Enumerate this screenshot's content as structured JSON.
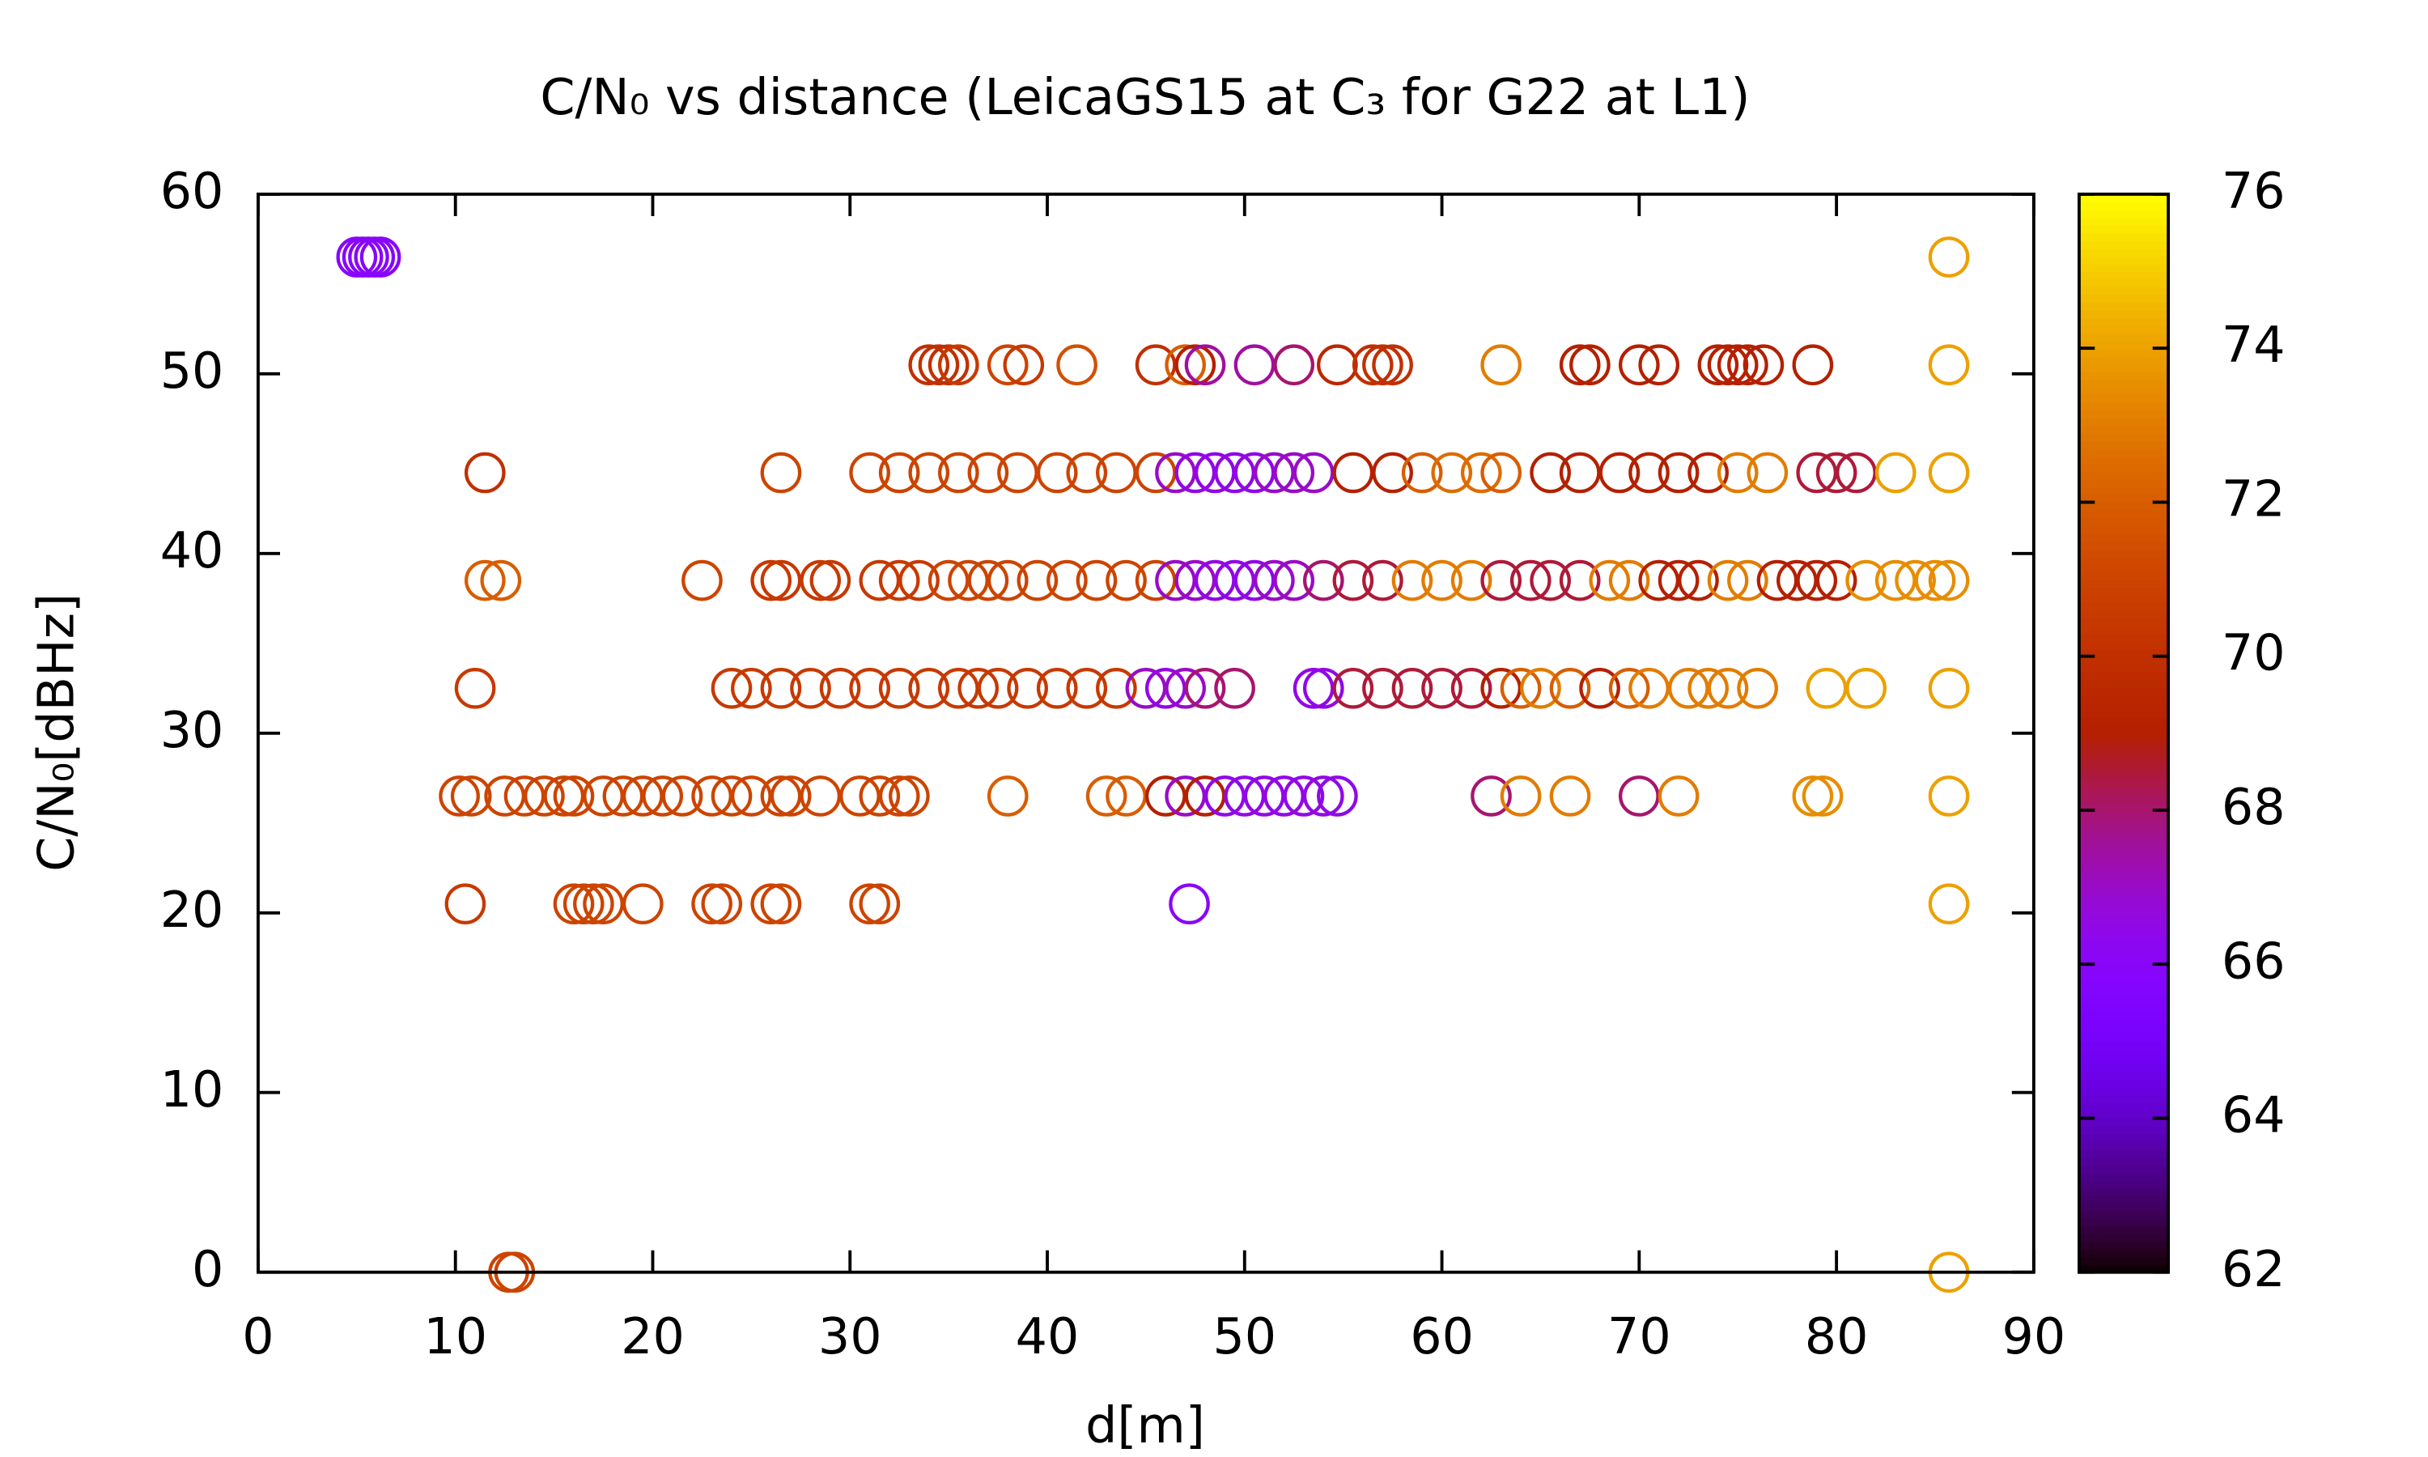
{
  "chart_data": {
    "type": "scatter",
    "title": "C/N₀ vs distance (LeicaGS15 at C₃ for G22 at L1)",
    "x_label": "d[m]",
    "y_label": "C/N₀[dBHz]",
    "xlim": [
      0,
      90
    ],
    "xticks": [
      0,
      10,
      20,
      30,
      40,
      50,
      60,
      70,
      80,
      90
    ],
    "ylim": [
      0,
      60
    ],
    "yticks": [
      0,
      10,
      20,
      30,
      40,
      50,
      60
    ],
    "cblim": [
      62,
      76
    ],
    "cbticks": [
      62,
      64,
      66,
      68,
      70,
      72,
      74,
      76
    ],
    "colormap": "gnuplot",
    "marker": "open-circle",
    "x": [
      5,
      5.3,
      5.6,
      5.9,
      6.2,
      85.7,
      34,
      34.5,
      35,
      35.5,
      38,
      38.8,
      41.5,
      45.5,
      47,
      47.5,
      48,
      50.5,
      52.5,
      54.7,
      56.5,
      57,
      57.5,
      63,
      67,
      67.5,
      70,
      71,
      74,
      74.5,
      75,
      75.5,
      76.3,
      78.8,
      85.7,
      11.5,
      26.5,
      31,
      32.5,
      34,
      35.5,
      37,
      38.5,
      40.5,
      42,
      43.5,
      45.5,
      46.5,
      47.5,
      48.5,
      49.5,
      50.5,
      51.5,
      52.5,
      53.5,
      55.5,
      57.5,
      59,
      60.5,
      62,
      63,
      65.5,
      67,
      69,
      70.5,
      72,
      73.5,
      75,
      76.5,
      79,
      80,
      81,
      83,
      85.7,
      11.5,
      12.3,
      22.5,
      26,
      26.5,
      28.5,
      29,
      31.5,
      32.5,
      33.5,
      35,
      36,
      37,
      38,
      39.5,
      41,
      42.5,
      44,
      45.5,
      46.5,
      47.5,
      48.5,
      49.5,
      50.5,
      51.5,
      52.5,
      54,
      55.5,
      57,
      58.5,
      60,
      61.5,
      63,
      64.5,
      65.5,
      67,
      68.5,
      69.5,
      71,
      72,
      73,
      74.5,
      75.5,
      77,
      78,
      79,
      80,
      81.5,
      83,
      84,
      85,
      85.7,
      11,
      24,
      25,
      26.5,
      28,
      29.5,
      31,
      32.5,
      34,
      35.5,
      36.5,
      37.5,
      39,
      40.5,
      42,
      43.5,
      45,
      46,
      47,
      48,
      49.5,
      53.5,
      54,
      55.5,
      57,
      58.5,
      60,
      61.5,
      63,
      64,
      65,
      66.5,
      68,
      69.5,
      70.5,
      72.5,
      73.5,
      74.5,
      76,
      79.5,
      81.5,
      85.7,
      10.2,
      10.8,
      12.5,
      13.5,
      14.5,
      15.5,
      16,
      17.5,
      18.5,
      19.5,
      20.5,
      21.5,
      23,
      24,
      25,
      26.5,
      27,
      28.5,
      30.5,
      31.5,
      32.5,
      33,
      38,
      43,
      44,
      46,
      47,
      48,
      49,
      50,
      51,
      52,
      53,
      54,
      54.7,
      62.5,
      64,
      66.5,
      70,
      72,
      78.8,
      79.3,
      85.7,
      10.5,
      16,
      16.5,
      17,
      17.5,
      19.5,
      23,
      23.5,
      26,
      26.5,
      31,
      31.5,
      47.2,
      85.7,
      12.7,
      13,
      85.7
    ],
    "values": [
      56.5,
      56.5,
      56.5,
      56.5,
      56.5,
      56.5,
      50.5,
      50.5,
      50.5,
      50.5,
      50.5,
      50.5,
      50.5,
      50.5,
      50.5,
      50.5,
      50.5,
      50.5,
      50.5,
      50.5,
      50.5,
      50.5,
      50.5,
      50.5,
      50.5,
      50.5,
      50.5,
      50.5,
      50.5,
      50.5,
      50.5,
      50.5,
      50.5,
      50.5,
      50.5,
      44.5,
      44.5,
      44.5,
      44.5,
      44.5,
      44.5,
      44.5,
      44.5,
      44.5,
      44.5,
      44.5,
      44.5,
      44.5,
      44.5,
      44.5,
      44.5,
      44.5,
      44.5,
      44.5,
      44.5,
      44.5,
      44.5,
      44.5,
      44.5,
      44.5,
      44.5,
      44.5,
      44.5,
      44.5,
      44.5,
      44.5,
      44.5,
      44.5,
      44.5,
      44.5,
      44.5,
      44.5,
      44.5,
      44.5,
      38.5,
      38.5,
      38.5,
      38.5,
      38.5,
      38.5,
      38.5,
      38.5,
      38.5,
      38.5,
      38.5,
      38.5,
      38.5,
      38.5,
      38.5,
      38.5,
      38.5,
      38.5,
      38.5,
      38.5,
      38.5,
      38.5,
      38.5,
      38.5,
      38.5,
      38.5,
      38.5,
      38.5,
      38.5,
      38.5,
      38.5,
      38.5,
      38.5,
      38.5,
      38.5,
      38.5,
      38.5,
      38.5,
      38.5,
      38.5,
      38.5,
      38.5,
      38.5,
      38.5,
      38.5,
      38.5,
      38.5,
      38.5,
      38.5,
      38.5,
      38.5,
      38.5,
      32.5,
      32.5,
      32.5,
      32.5,
      32.5,
      32.5,
      32.5,
      32.5,
      32.5,
      32.5,
      32.5,
      32.5,
      32.5,
      32.5,
      32.5,
      32.5,
      32.5,
      32.5,
      32.5,
      32.5,
      32.5,
      32.5,
      32.5,
      32.5,
      32.5,
      32.5,
      32.5,
      32.5,
      32.5,
      32.5,
      32.5,
      32.5,
      32.5,
      32.5,
      32.5,
      32.5,
      32.5,
      32.5,
      32.5,
      32.5,
      32.5,
      32.5,
      26.5,
      26.5,
      26.5,
      26.5,
      26.5,
      26.5,
      26.5,
      26.5,
      26.5,
      26.5,
      26.5,
      26.5,
      26.5,
      26.5,
      26.5,
      26.5,
      26.5,
      26.5,
      26.5,
      26.5,
      26.5,
      26.5,
      26.5,
      26.5,
      26.5,
      26.5,
      26.5,
      26.5,
      26.5,
      26.5,
      26.5,
      26.5,
      26.5,
      26.5,
      26.5,
      26.5,
      26.5,
      26.5,
      26.5,
      26.5,
      26.5,
      26.5,
      26.5,
      20.5,
      20.5,
      20.5,
      20.5,
      20.5,
      20.5,
      20.5,
      20.5,
      20.5,
      20.5,
      20.5,
      20.5,
      20.5,
      20.5,
      0,
      0,
      0
    ],
    "color_values": [
      66,
      66,
      66,
      66,
      66,
      74,
      70,
      70,
      70,
      70.5,
      71,
      70.5,
      71.5,
      70,
      72,
      69,
      67.5,
      67.5,
      68,
      69.5,
      70,
      70,
      70,
      73,
      69,
      69,
      69,
      69,
      69,
      69,
      69,
      69,
      69,
      69,
      74,
      70,
      71,
      71,
      71,
      71,
      71,
      71,
      71,
      71,
      71,
      71,
      71,
      67,
      66.5,
      66.5,
      66.5,
      66.5,
      67,
      67,
      67,
      69,
      69,
      72,
      72.5,
      72.5,
      72,
      69,
      69,
      69,
      69,
      69,
      69,
      73,
      73,
      68.5,
      68.5,
      68.5,
      74,
      74,
      72,
      72,
      71,
      70.5,
      70.5,
      70.5,
      70.5,
      70.5,
      70.5,
      70.5,
      71,
      71,
      71,
      71,
      71,
      71,
      71,
      71,
      71,
      67,
      67,
      66.5,
      66.5,
      66.5,
      67,
      67,
      68,
      68.5,
      68.5,
      73,
      73,
      73,
      68.5,
      68.5,
      68.5,
      68.5,
      73,
      73,
      69,
      69,
      69,
      73,
      73,
      69,
      69,
      69,
      69,
      73.5,
      73.5,
      73.5,
      73.5,
      73.5,
      70.5,
      70.5,
      70.5,
      70.5,
      70.5,
      70.5,
      70.5,
      70.5,
      70.5,
      70.5,
      70.5,
      70.5,
      70.5,
      70.5,
      70.5,
      70.5,
      67,
      66.5,
      67,
      68,
      68,
      66.5,
      66.5,
      68.5,
      68.5,
      68.5,
      68.5,
      68.5,
      69,
      72,
      73,
      72,
      69,
      72,
      73,
      73,
      73,
      73,
      73,
      74,
      74,
      74,
      71,
      71,
      71,
      71,
      71,
      71,
      71,
      71,
      71,
      71,
      71,
      71,
      71,
      71,
      71,
      71,
      71,
      71,
      71,
      71,
      71,
      71,
      72,
      72,
      72,
      69,
      67,
      69,
      66.5,
      66.5,
      66.5,
      66.5,
      66.5,
      66.5,
      66.5,
      68,
      73,
      73,
      68,
      73,
      73.5,
      73.5,
      74,
      70.5,
      71,
      71,
      71,
      71,
      71,
      71,
      71,
      71,
      71,
      71,
      71,
      66,
      74,
      71,
      71,
      74
    ]
  }
}
